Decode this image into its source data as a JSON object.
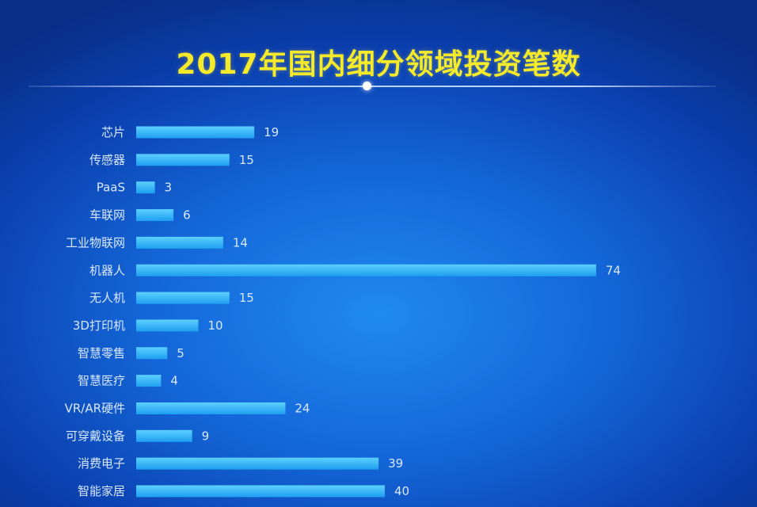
{
  "chart_data": {
    "type": "bar",
    "orientation": "horizontal",
    "title": "2017年国内细分领域投资笔数",
    "categories": [
      "芯片",
      "传感器",
      "PaaS",
      "车联网",
      "工业物联网",
      "机器人",
      "无人机",
      "3D打印机",
      "智慧零售",
      "智慧医疗",
      "VR/AR硬件",
      "可穿戴设备",
      "消费电子",
      "智能家居"
    ],
    "values": [
      19,
      15,
      3,
      6,
      14,
      74,
      15,
      10,
      5,
      4,
      24,
      9,
      39,
      40
    ],
    "xlim": [
      0,
      80
    ],
    "grid": false,
    "data_labels": true
  },
  "colors": {
    "bar": "#2fb2f5",
    "title": "#f5ea2a",
    "label": "#d9e8ff"
  }
}
